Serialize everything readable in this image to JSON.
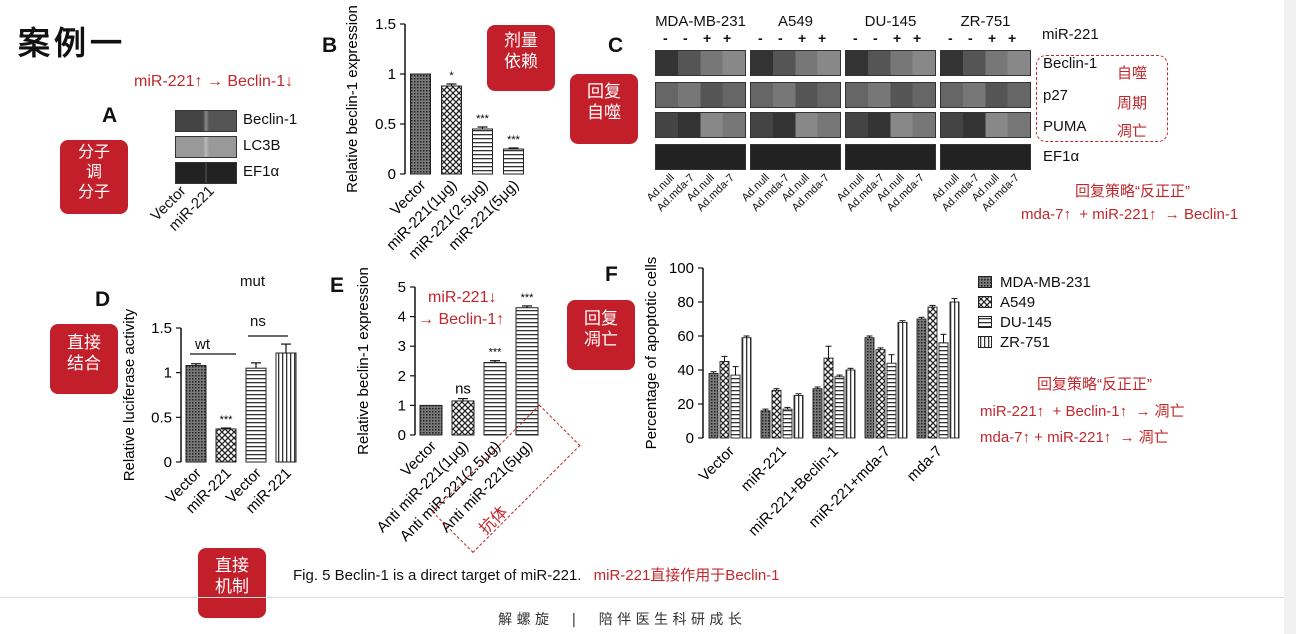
{
  "slide_title": "案例一",
  "panel_a": {
    "letter": "A",
    "headline": "miR-221↑ → Beclin-1↓",
    "callout": [
      "分子",
      "调",
      "分子"
    ],
    "rows": [
      "Beclin-1",
      "LC3B",
      "EF1α"
    ],
    "lanes": [
      "Vector",
      "miR-221"
    ]
  },
  "panel_b": {
    "letter": "B",
    "callout": [
      "剂量",
      "依赖"
    ]
  },
  "panel_c": {
    "letter": "C",
    "callout": [
      "回复",
      "自噬"
    ],
    "cell_lines": [
      "MDA-MB-231",
      "A549",
      "DU-145",
      "ZR-751"
    ],
    "mir_header": "miR-221",
    "signs": [
      "-",
      "-",
      "+",
      "+"
    ],
    "rows": [
      "Beclin-1",
      "p27",
      "PUMA",
      "EF1α"
    ],
    "row_notes": [
      "自噬",
      "周期",
      "凋亡"
    ],
    "lane_labels": [
      "Ad.null",
      "Ad.mda-7",
      "Ad.null",
      "Ad.mda-7"
    ],
    "strategy_title": "回复策略“反正正”",
    "strategy_line": "mda-7↑  + miR-221↑  → Beclin-1"
  },
  "panel_d": {
    "letter": "D",
    "callout": [
      "直接",
      "结合"
    ],
    "mut_label": "mut",
    "wt_label": "wt",
    "ns_label": "ns"
  },
  "panel_e": {
    "letter": "E",
    "annotation_1": "miR-221↓",
    "annotation_2": "→ Beclin-1↑",
    "antibody_note": "抗体"
  },
  "panel_f": {
    "letter": "F",
    "callout": [
      "回复",
      "凋亡"
    ],
    "strategy_title": "回复策略“反正正”",
    "strategy_line_1": "miR-221↑  + Beclin-1↑  → 凋亡",
    "strategy_line_2": "mda-7↑ + miR-221↑  → 凋亡"
  },
  "bottom": {
    "callout": [
      "直接",
      "机制"
    ],
    "caption": "Fig. 5 Beclin-1 is a direct target of miR-221.",
    "caption_cn": "miR-221直接作用于Beclin-1"
  },
  "footer": {
    "left": "解 螺 旋",
    "sep": "|",
    "right": "陪 伴 医 生 科 研 成 长"
  },
  "chart_data": [
    {
      "id": "B",
      "type": "bar",
      "ylabel": "Relative beclin-1 expression",
      "categories": [
        "Vector",
        "miR-221(1μg)",
        "miR-221(2.5μg)",
        "miR-221(5μg)"
      ],
      "values": [
        1.0,
        0.88,
        0.45,
        0.25
      ],
      "errors": [
        0.0,
        0.02,
        0.02,
        0.01
      ],
      "significance": [
        "",
        "*",
        "***",
        "***"
      ],
      "ylim": [
        0,
        1.5
      ],
      "yticks": [
        "0",
        "0.5",
        "1",
        "1.5"
      ],
      "yticks_values": [
        0,
        0.5,
        1,
        1.5
      ]
    },
    {
      "id": "D",
      "type": "bar",
      "ylabel": "Relative luciferase activity",
      "categories": [
        "Vector",
        "miR-221",
        "Vector",
        "miR-221"
      ],
      "values": [
        1.08,
        0.37,
        1.05,
        1.22
      ],
      "errors": [
        0.02,
        0.01,
        0.06,
        0.1
      ],
      "significance": [
        "",
        "***",
        "",
        ""
      ],
      "ylim": [
        0,
        1.5
      ],
      "yticks": [
        "0",
        "0.5",
        "1",
        "1.5"
      ],
      "yticks_values": [
        0,
        0.5,
        1,
        1.5
      ]
    },
    {
      "id": "E",
      "type": "bar",
      "ylabel": "Relative beclin-1 expression",
      "categories": [
        "Vector",
        "Anti miR-221(1μg)",
        "Anti miR-221(2.5μg)",
        "Anti miR-221(5μg)"
      ],
      "values": [
        1.0,
        1.15,
        2.45,
        4.3
      ],
      "errors": [
        0.0,
        0.08,
        0.06,
        0.06
      ],
      "significance": [
        "",
        "ns",
        "***",
        "***"
      ],
      "ylim": [
        0,
        5
      ],
      "yticks": [
        "0",
        "1",
        "2",
        "3",
        "4",
        "5"
      ],
      "yticks_values": [
        0,
        1,
        2,
        3,
        4,
        5
      ]
    },
    {
      "id": "F",
      "type": "bar",
      "ylabel": "Percentage of apoptotic cells",
      "categories": [
        "Vector",
        "miR-221",
        "miR-221+Beclin-1",
        "miR-221+mda-7",
        "mda-7"
      ],
      "series": [
        {
          "name": "MDA-MB-231",
          "values": [
            38,
            16,
            29,
            59,
            70
          ]
        },
        {
          "name": "A549",
          "values": [
            45,
            28,
            47,
            52,
            77
          ]
        },
        {
          "name": "DU-145",
          "values": [
            37,
            17,
            36,
            44,
            56
          ]
        },
        {
          "name": "ZR-751",
          "values": [
            59,
            25,
            40,
            68,
            80
          ]
        }
      ],
      "errors": [
        [
          1,
          1,
          1,
          1,
          1
        ],
        [
          3,
          1,
          7,
          1,
          1
        ],
        [
          5,
          1,
          1,
          5,
          5
        ],
        [
          1,
          1,
          1,
          1,
          2
        ]
      ],
      "ylim": [
        0,
        100
      ],
      "yticks": [
        "0",
        "20",
        "40",
        "60",
        "80",
        "100"
      ],
      "yticks_values": [
        0,
        20,
        40,
        60,
        80,
        100
      ],
      "legend_position": "top-right"
    }
  ]
}
